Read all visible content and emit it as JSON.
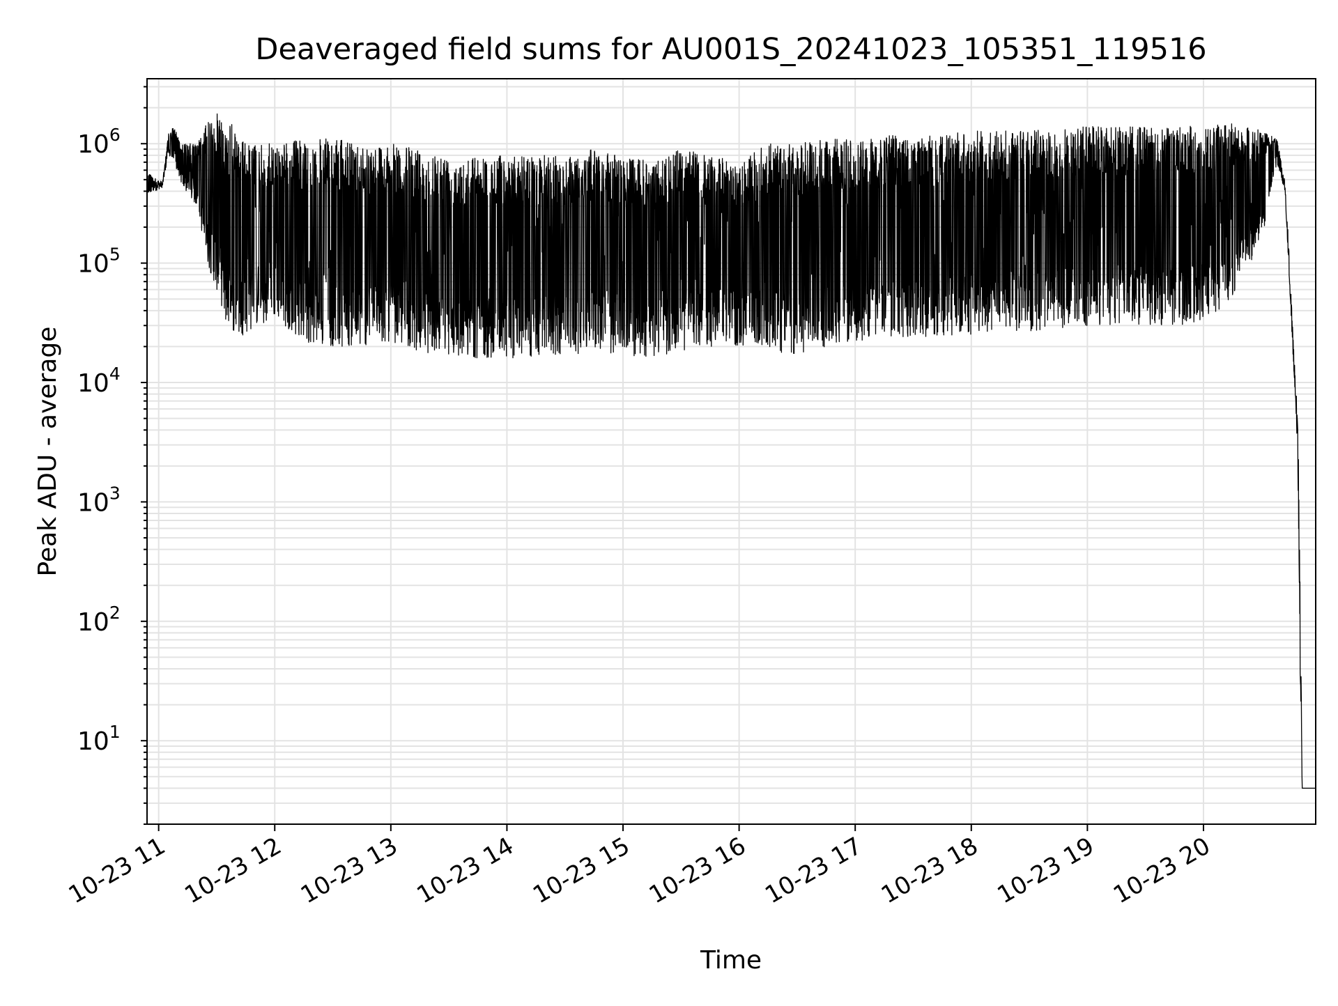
{
  "chart_data": {
    "type": "line",
    "title": "Deaveraged field sums for AU001S_20241023_105351_119516",
    "xlabel": "Time",
    "ylabel": "Peak ADU - average",
    "yscale": "log",
    "grid": true,
    "legend": "none",
    "line_color": "#000000",
    "grid_color": "#e3e3e3",
    "x_range": [
      "10-23 10:54",
      "10-23 20:58"
    ],
    "y_range": [
      2,
      3500000
    ],
    "x_ticks": [
      "10-23 11",
      "10-23 12",
      "10-23 13",
      "10-23 14",
      "10-23 15",
      "10-23 16",
      "10-23 17",
      "10-23 18",
      "10-23 19",
      "10-23 20"
    ],
    "y_ticks": [
      {
        "base": "10",
        "exp": "1",
        "value": 10
      },
      {
        "base": "10",
        "exp": "2",
        "value": 100
      },
      {
        "base": "10",
        "exp": "3",
        "value": 1000
      },
      {
        "base": "10",
        "exp": "4",
        "value": 10000
      },
      {
        "base": "10",
        "exp": "5",
        "value": 100000
      },
      {
        "base": "10",
        "exp": "6",
        "value": 1000000
      }
    ],
    "series": [
      {
        "x": [
          "10:54",
          "10:58",
          "11:02",
          "11:05",
          "11:08",
          "11:12",
          "11:16",
          "11:20",
          "11:25",
          "11:30",
          "11:35",
          "11:40",
          "11:45",
          "11:50",
          "11:55",
          "12:00",
          "12:15",
          "12:30",
          "12:45",
          "13:00",
          "13:15",
          "13:30",
          "13:45",
          "14:00",
          "14:15",
          "14:30",
          "14:45",
          "15:00",
          "15:15",
          "15:30",
          "15:45",
          "16:00",
          "16:15",
          "16:30",
          "16:45",
          "17:00",
          "17:15",
          "17:30",
          "17:45",
          "18:00",
          "18:15",
          "18:30",
          "18:45",
          "19:00",
          "19:15",
          "19:30",
          "19:45",
          "20:00",
          "20:15",
          "20:30",
          "20:38",
          "20:42",
          "20:44",
          "20:46",
          "20:47",
          "20:48",
          "20:49",
          "20:50",
          "20:51",
          "20:58"
        ],
        "upper": [
          600000,
          520000,
          480000,
          1200000,
          1400000,
          1000000,
          1000000,
          1000000,
          1500000,
          1800000,
          1600000,
          1400000,
          1000000,
          1000000,
          1000000,
          1000000,
          1100000,
          1100000,
          1000000,
          1000000,
          900000,
          800000,
          800000,
          800000,
          800000,
          800000,
          900000,
          800000,
          700000,
          900000,
          800000,
          700000,
          1000000,
          1000000,
          1100000,
          1100000,
          1200000,
          1200000,
          1200000,
          1300000,
          1300000,
          1300000,
          1300000,
          1400000,
          1400000,
          1400000,
          1400000,
          1400000,
          1500000,
          1400000,
          1100000,
          500000,
          150000,
          30000,
          15000,
          9000,
          3000,
          200,
          4,
          4
        ],
        "lower": [
          380000,
          400000,
          430000,
          800000,
          700000,
          450000,
          350000,
          300000,
          100000,
          60000,
          30000,
          25000,
          25000,
          30000,
          30000,
          35000,
          22000,
          20000,
          20000,
          22000,
          18000,
          17000,
          16000,
          16000,
          16000,
          17000,
          18000,
          17000,
          16000,
          18000,
          20000,
          20000,
          18000,
          16000,
          20000,
          22000,
          24000,
          24000,
          24000,
          25000,
          26000,
          27000,
          28000,
          30000,
          30000,
          30000,
          30000,
          32000,
          50000,
          150000,
          700000,
          400000,
          100000,
          20000,
          10000,
          5000,
          1000,
          30,
          4,
          4
        ]
      }
    ]
  }
}
